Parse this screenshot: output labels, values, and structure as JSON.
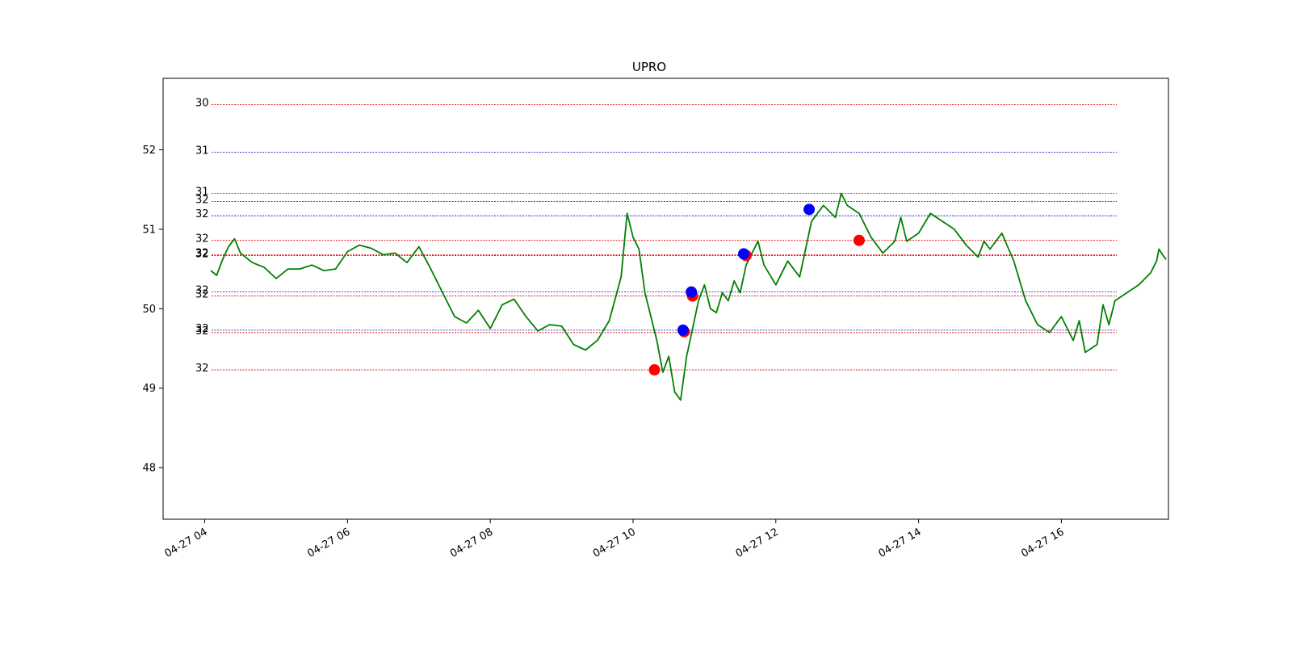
{
  "chart_data": {
    "type": "line",
    "title": "UPRO",
    "xlabel": "",
    "ylabel": "",
    "x_axis": "time",
    "xlim": [
      "2024-04-27 03:25",
      "2024-04-27 17:30"
    ],
    "ylim": [
      47.35,
      52.9
    ],
    "y_ticks": [
      48,
      49,
      50,
      51,
      52
    ],
    "x_ticks": [
      "04-27 04",
      "04-27 06",
      "04-27 08",
      "04-27 10",
      "04-27 12",
      "04-27 14",
      "04-27 16"
    ],
    "x_tick_times": [
      "2024-04-27 04:00",
      "2024-04-27 06:00",
      "2024-04-27 08:00",
      "2024-04-27 10:00",
      "2024-04-27 12:00",
      "2024-04-27 14:00",
      "2024-04-27 16:00"
    ],
    "grid": false,
    "series": [
      {
        "color": "#008000",
        "points": [
          [
            "2024-04-27 04:05",
            50.48
          ],
          [
            "2024-04-27 04:10",
            50.42
          ],
          [
            "2024-04-27 04:15",
            50.62
          ],
          [
            "2024-04-27 04:20",
            50.78
          ],
          [
            "2024-04-27 04:25",
            50.88
          ],
          [
            "2024-04-27 04:30",
            50.7
          ],
          [
            "2024-04-27 04:40",
            50.58
          ],
          [
            "2024-04-27 04:50",
            50.52
          ],
          [
            "2024-04-27 05:00",
            50.38
          ],
          [
            "2024-04-27 05:10",
            50.5
          ],
          [
            "2024-04-27 05:20",
            50.5
          ],
          [
            "2024-04-27 05:30",
            50.55
          ],
          [
            "2024-04-27 05:40",
            50.48
          ],
          [
            "2024-04-27 05:50",
            50.5
          ],
          [
            "2024-04-27 06:00",
            50.72
          ],
          [
            "2024-04-27 06:10",
            50.8
          ],
          [
            "2024-04-27 06:20",
            50.76
          ],
          [
            "2024-04-27 06:30",
            50.68
          ],
          [
            "2024-04-27 06:40",
            50.7
          ],
          [
            "2024-04-27 06:50",
            50.58
          ],
          [
            "2024-04-27 07:00",
            50.78
          ],
          [
            "2024-04-27 07:10",
            50.5
          ],
          [
            "2024-04-27 07:20",
            50.2
          ],
          [
            "2024-04-27 07:30",
            49.9
          ],
          [
            "2024-04-27 07:40",
            49.82
          ],
          [
            "2024-04-27 07:50",
            49.98
          ],
          [
            "2024-04-27 08:00",
            49.75
          ],
          [
            "2024-04-27 08:10",
            50.05
          ],
          [
            "2024-04-27 08:20",
            50.12
          ],
          [
            "2024-04-27 08:30",
            49.9
          ],
          [
            "2024-04-27 08:40",
            49.72
          ],
          [
            "2024-04-27 08:50",
            49.8
          ],
          [
            "2024-04-27 09:00",
            49.78
          ],
          [
            "2024-04-27 09:10",
            49.55
          ],
          [
            "2024-04-27 09:20",
            49.48
          ],
          [
            "2024-04-27 09:30",
            49.6
          ],
          [
            "2024-04-27 09:40",
            49.85
          ],
          [
            "2024-04-27 09:50",
            50.4
          ],
          [
            "2024-04-27 09:55",
            51.2
          ],
          [
            "2024-04-27 10:00",
            50.9
          ],
          [
            "2024-04-27 10:05",
            50.75
          ],
          [
            "2024-04-27 10:10",
            50.2
          ],
          [
            "2024-04-27 10:15",
            49.9
          ],
          [
            "2024-04-27 10:20",
            49.6
          ],
          [
            "2024-04-27 10:25",
            49.2
          ],
          [
            "2024-04-27 10:30",
            49.4
          ],
          [
            "2024-04-27 10:35",
            48.95
          ],
          [
            "2024-04-27 10:40",
            48.85
          ],
          [
            "2024-04-27 10:45",
            49.4
          ],
          [
            "2024-04-27 10:50",
            49.75
          ],
          [
            "2024-04-27 10:55",
            50.1
          ],
          [
            "2024-04-27 11:00",
            50.3
          ],
          [
            "2024-04-27 11:05",
            50.0
          ],
          [
            "2024-04-27 11:10",
            49.95
          ],
          [
            "2024-04-27 11:15",
            50.2
          ],
          [
            "2024-04-27 11:20",
            50.1
          ],
          [
            "2024-04-27 11:25",
            50.35
          ],
          [
            "2024-04-27 11:30",
            50.2
          ],
          [
            "2024-04-27 11:35",
            50.55
          ],
          [
            "2024-04-27 11:40",
            50.7
          ],
          [
            "2024-04-27 11:45",
            50.85
          ],
          [
            "2024-04-27 11:50",
            50.55
          ],
          [
            "2024-04-27 12:00",
            50.3
          ],
          [
            "2024-04-27 12:10",
            50.6
          ],
          [
            "2024-04-27 12:20",
            50.4
          ],
          [
            "2024-04-27 12:30",
            51.1
          ],
          [
            "2024-04-27 12:40",
            51.3
          ],
          [
            "2024-04-27 12:50",
            51.15
          ],
          [
            "2024-04-27 12:55",
            51.45
          ],
          [
            "2024-04-27 13:00",
            51.3
          ],
          [
            "2024-04-27 13:10",
            51.2
          ],
          [
            "2024-04-27 13:20",
            50.9
          ],
          [
            "2024-04-27 13:30",
            50.7
          ],
          [
            "2024-04-27 13:40",
            50.85
          ],
          [
            "2024-04-27 13:45",
            51.15
          ],
          [
            "2024-04-27 13:50",
            50.85
          ],
          [
            "2024-04-27 14:00",
            50.95
          ],
          [
            "2024-04-27 14:10",
            51.2
          ],
          [
            "2024-04-27 14:20",
            51.1
          ],
          [
            "2024-04-27 14:30",
            51.0
          ],
          [
            "2024-04-27 14:40",
            50.8
          ],
          [
            "2024-04-27 14:50",
            50.65
          ],
          [
            "2024-04-27 14:55",
            50.85
          ],
          [
            "2024-04-27 15:00",
            50.75
          ],
          [
            "2024-04-27 15:10",
            50.95
          ],
          [
            "2024-04-27 15:20",
            50.6
          ],
          [
            "2024-04-27 15:30",
            50.1
          ],
          [
            "2024-04-27 15:40",
            49.8
          ],
          [
            "2024-04-27 15:50",
            49.7
          ],
          [
            "2024-04-27 16:00",
            49.9
          ],
          [
            "2024-04-27 16:10",
            49.6
          ],
          [
            "2024-04-27 16:15",
            49.85
          ],
          [
            "2024-04-27 16:20",
            49.45
          ],
          [
            "2024-04-27 16:30",
            49.55
          ],
          [
            "2024-04-27 16:35",
            50.05
          ],
          [
            "2024-04-27 16:40",
            49.8
          ],
          [
            "2024-04-27 16:45",
            50.1
          ],
          [
            "2024-04-27 16:55",
            50.2
          ],
          [
            "2024-04-27 17:05",
            50.3
          ],
          [
            "2024-04-27 17:15",
            50.45
          ],
          [
            "2024-04-27 17:20",
            50.6
          ],
          [
            "2024-04-27 17:22",
            50.75
          ],
          [
            "2024-04-27 17:25",
            50.68
          ],
          [
            "2024-04-27 17:28",
            50.62
          ]
        ]
      }
    ],
    "level_lines": [
      {
        "label": "30",
        "y": 52.57,
        "color": "#dd0000"
      },
      {
        "label": "31",
        "y": 51.97,
        "color": "#0000cc"
      },
      {
        "label": "31",
        "y": 51.45,
        "color": "#dd0000"
      },
      {
        "label": "32",
        "y": 51.35,
        "color": "#0000cc"
      },
      {
        "label": "32",
        "y": 51.17,
        "color": "#0000cc"
      },
      {
        "label": "32",
        "y": 50.86,
        "color": "#dd0000"
      },
      {
        "label": "32",
        "y": 50.68,
        "color": "#dd0000"
      },
      {
        "label": "32",
        "y": 50.67,
        "color": "#0000cc"
      },
      {
        "label": "32",
        "y": 50.21,
        "color": "#0000cc"
      },
      {
        "label": "32",
        "y": 50.16,
        "color": "#dd0000"
      },
      {
        "label": "32",
        "y": 49.73,
        "color": "#0000cc"
      },
      {
        "label": "32",
        "y": 49.7,
        "color": "#dd0000"
      },
      {
        "label": "32",
        "y": 49.23,
        "color": "#dd0000"
      }
    ],
    "markers": [
      {
        "x": "2024-04-27 10:18",
        "y": 49.23,
        "color": "#ff0000"
      },
      {
        "x": "2024-04-27 10:43",
        "y": 49.71,
        "color": "#ff0000"
      },
      {
        "x": "2024-04-27 10:42",
        "y": 49.73,
        "color": "#0000ff"
      },
      {
        "x": "2024-04-27 10:50",
        "y": 50.16,
        "color": "#ff0000"
      },
      {
        "x": "2024-04-27 10:49",
        "y": 50.21,
        "color": "#0000ff"
      },
      {
        "x": "2024-04-27 11:35",
        "y": 50.67,
        "color": "#ff0000"
      },
      {
        "x": "2024-04-27 11:33",
        "y": 50.69,
        "color": "#0000ff"
      },
      {
        "x": "2024-04-27 12:28",
        "y": 51.25,
        "color": "#0000ff"
      },
      {
        "x": "2024-04-27 13:10",
        "y": 50.86,
        "color": "#ff0000"
      }
    ],
    "line_color": "#008000"
  }
}
